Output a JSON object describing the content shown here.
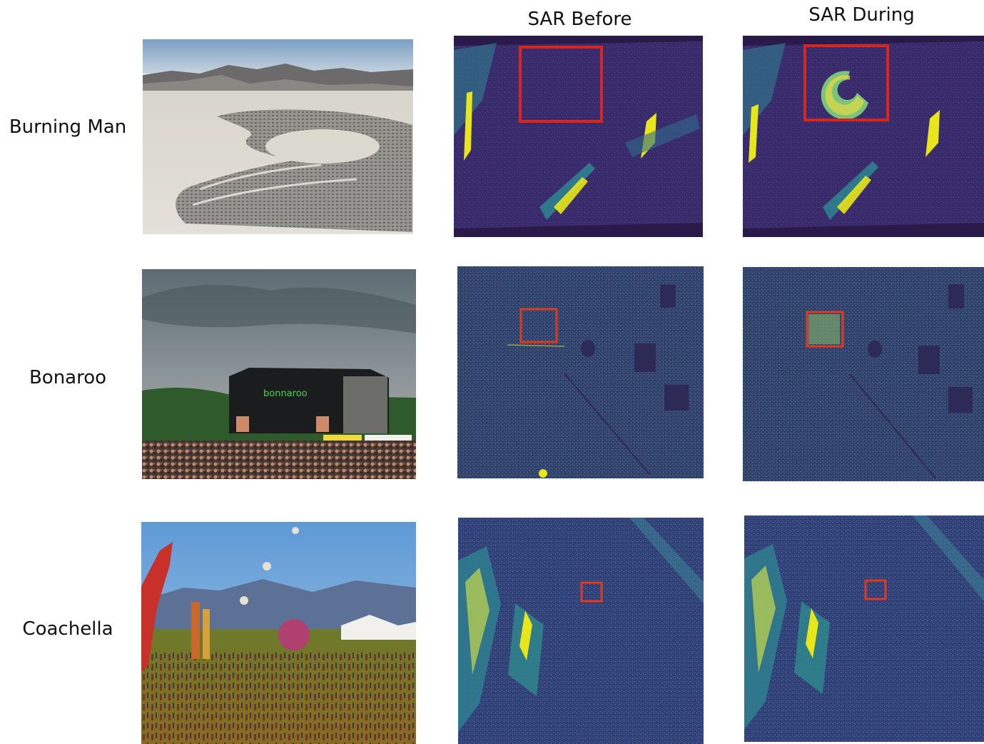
{
  "columns": {
    "sar_before": "SAR Before",
    "sar_during": "SAR During"
  },
  "rows": [
    {
      "label": "Burning Man"
    },
    {
      "label": "Bonaroo"
    },
    {
      "label": "Coachella"
    }
  ],
  "colors": {
    "sar_base": "#3b2a6b",
    "sar_dark": "#2a1a4a",
    "sar_teal": "#2f7f8e",
    "sar_yellow": "#e8e51a",
    "highlight_box": "#d9261c"
  }
}
